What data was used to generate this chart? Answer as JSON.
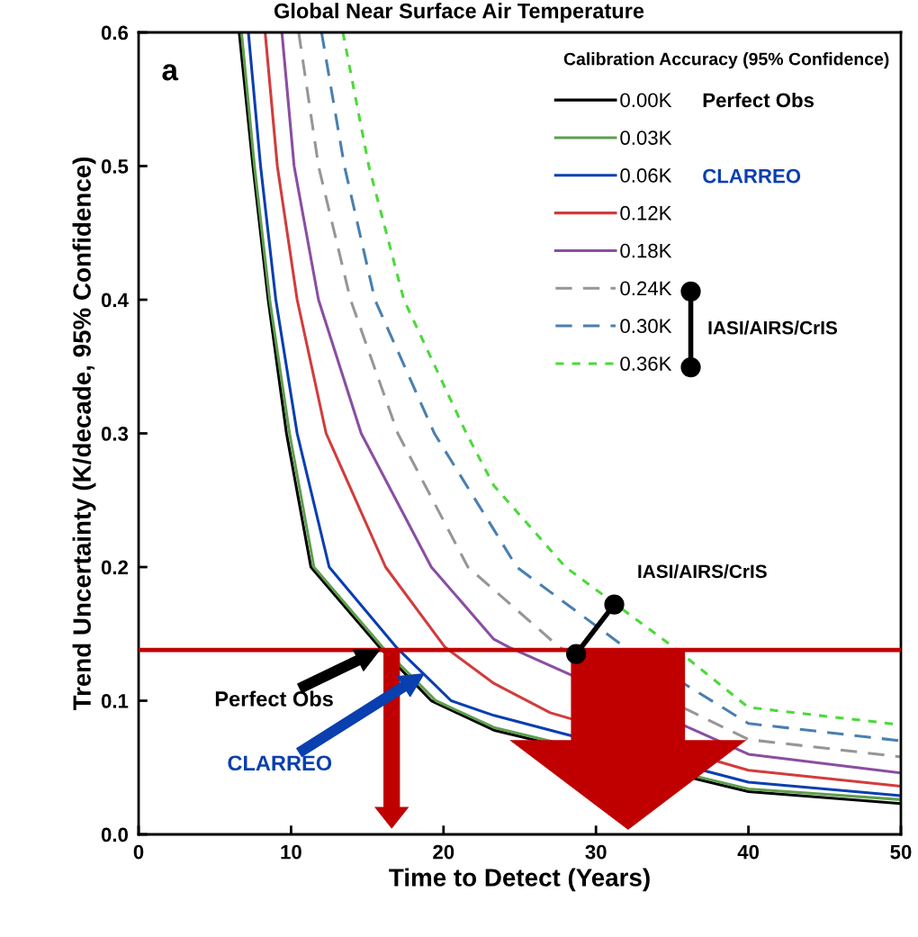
{
  "chart_data": {
    "type": "line",
    "title": "Global Near Surface Air Temperature",
    "xlabel": "Time to Detect (Years)",
    "ylabel": "Trend Uncertainty (K/decade, 95% Confidence)",
    "legend_title": "Calibration Accuracy (95% Confidence)",
    "xlim": [
      0,
      50
    ],
    "ylim": [
      0,
      0.6
    ],
    "xticks": [
      0,
      10,
      20,
      30,
      40,
      50
    ],
    "yticks": [
      {
        "value": 0,
        "label": "0.0"
      },
      0.1,
      0.2,
      0.3,
      0.4,
      0.5,
      0.6
    ],
    "grid": false,
    "legend": "top right",
    "marker": "none",
    "series": [
      {
        "name": "0.00K",
        "color": "#000000",
        "line_style": "solid",
        "x": [
          6.6,
          7.5,
          8.5,
          9.7,
          11.3,
          15.8,
          19.2,
          23.3,
          40,
          50
        ],
        "values": [
          0.6,
          0.5,
          0.4,
          0.3,
          0.2,
          0.14,
          0.1,
          0.078,
          0.032,
          0.023
        ]
      },
      {
        "name": "0.03K",
        "color": "#5f9e4f",
        "line_style": "solid",
        "x": [
          6.75,
          7.6,
          8.6,
          9.9,
          11.5,
          16.0,
          19.5,
          23.3,
          40,
          50
        ],
        "values": [
          0.6,
          0.5,
          0.4,
          0.3,
          0.2,
          0.14,
          0.1,
          0.08,
          0.034,
          0.026
        ]
      },
      {
        "name": "0.06K",
        "color": "#0a3fb0",
        "line_style": "solid",
        "x": [
          7.2,
          8.0,
          9.0,
          10.4,
          12.5,
          16.9,
          20.5,
          23.3,
          40,
          50
        ],
        "values": [
          0.6,
          0.5,
          0.4,
          0.3,
          0.2,
          0.14,
          0.1,
          0.089,
          0.039,
          0.029
        ]
      },
      {
        "name": "0.12K",
        "color": "#d23c3c",
        "line_style": "solid",
        "x": [
          8.3,
          9.1,
          10.4,
          12.3,
          16.2,
          20.1,
          23.3,
          27,
          40,
          50
        ],
        "values": [
          0.6,
          0.5,
          0.4,
          0.3,
          0.2,
          0.14,
          0.113,
          0.091,
          0.048,
          0.036
        ]
      },
      {
        "name": "0.18K",
        "color": "#8a4ea0",
        "line_style": "solid",
        "x": [
          9.4,
          10.2,
          11.8,
          14.6,
          19.2,
          23.3,
          24.3,
          40,
          50
        ],
        "values": [
          0.6,
          0.5,
          0.4,
          0.3,
          0.2,
          0.146,
          0.14,
          0.06,
          0.046
        ]
      },
      {
        "name": "0.24K",
        "color": "#969696",
        "line_style": "dashed",
        "x": [
          10.5,
          11.8,
          13.9,
          17.0,
          21.6,
          23.3,
          27.6,
          40,
          50
        ],
        "values": [
          0.6,
          0.5,
          0.4,
          0.3,
          0.2,
          0.183,
          0.14,
          0.071,
          0.058
        ]
      },
      {
        "name": "0.30K",
        "color": "#4a7fb0",
        "line_style": "dashed",
        "x": [
          12.0,
          13.5,
          15.5,
          19.4,
          23.3,
          24.8,
          31.9,
          40,
          50
        ],
        "values": [
          0.6,
          0.5,
          0.4,
          0.3,
          0.228,
          0.2,
          0.14,
          0.083,
          0.07
        ]
      },
      {
        "name": "0.36K",
        "color": "#4cd93c",
        "line_style": "dotted",
        "x": [
          13.4,
          15.1,
          17.4,
          21.5,
          23.3,
          28.0,
          35.1,
          40,
          50
        ],
        "values": [
          0.6,
          0.5,
          0.4,
          0.3,
          0.261,
          0.2,
          0.14,
          0.095,
          0.082
        ]
      }
    ],
    "ref_lines": [
      {
        "axis": "y",
        "value": 0.138,
        "color": "#c00000",
        "line_style": "solid"
      }
    ],
    "annotations": [
      "a",
      {
        "text": "Perfect Obs",
        "x": 15.8,
        "y": 0.138
      },
      "CLARREO",
      {
        "text": "IASI/AIRS/CrIS",
        "x": 31.2,
        "y": 0.172
      },
      "Perfect Obs",
      "CLARREO",
      "IASI/AIRS/CrIS"
    ]
  }
}
